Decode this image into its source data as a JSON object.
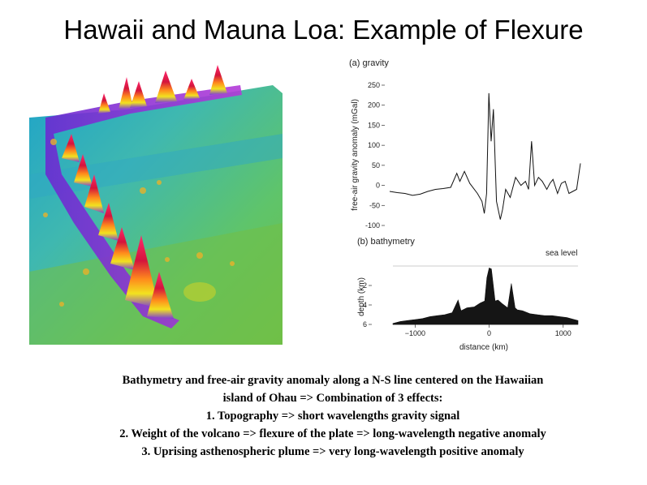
{
  "title": "Hawaii and Mauna Loa: Example of Flexure",
  "panel_a": {
    "label": "(a)  gravity",
    "ylabel": "free-air gravity anomaly (mGal)",
    "yticks": [
      "250",
      "200",
      "150",
      "100",
      "50",
      "0",
      "-50",
      "-100"
    ]
  },
  "panel_b": {
    "label": "(b)  bathymetry",
    "sea_level": "sea level",
    "ylabel": "depth (km)",
    "yticks": [
      "2",
      "4",
      "6"
    ],
    "xticks": [
      "−1000",
      "0",
      "1000"
    ],
    "xlabel": "distance (km)"
  },
  "chart_data": [
    {
      "type": "line",
      "title": "gravity",
      "ylabel": "free-air gravity anomaly (mGal)",
      "ylim": [
        -100,
        250
      ],
      "x": [
        -1300,
        -1200,
        -1100,
        -1000,
        -900,
        -800,
        -700,
        -600,
        -500,
        -420,
        -380,
        -320,
        -250,
        -150,
        -90,
        -60,
        -30,
        0,
        30,
        60,
        100,
        150,
        180,
        220,
        280,
        350,
        420,
        480,
        520,
        560,
        600,
        650,
        700,
        760,
        800,
        840,
        900,
        950,
        1000,
        1050,
        1100,
        1150,
        1200
      ],
      "values": [
        -15,
        -18,
        -20,
        -25,
        -22,
        -15,
        -10,
        -8,
        -5,
        30,
        10,
        35,
        5,
        -20,
        -40,
        -70,
        -20,
        230,
        110,
        190,
        -40,
        -85,
        -60,
        -10,
        -30,
        20,
        0,
        10,
        -10,
        110,
        0,
        20,
        10,
        -10,
        5,
        15,
        -20,
        5,
        10,
        -20,
        -15,
        -10,
        55
      ]
    },
    {
      "type": "area",
      "title": "bathymetry",
      "xlabel": "distance (km)",
      "ylabel": "depth (km)",
      "ylim": [
        6,
        0
      ],
      "x": [
        -1300,
        -1200,
        -1100,
        -1000,
        -900,
        -800,
        -700,
        -600,
        -500,
        -420,
        -380,
        -300,
        -200,
        -120,
        -60,
        -30,
        0,
        30,
        80,
        120,
        180,
        250,
        300,
        350,
        380,
        450,
        550,
        650,
        750,
        850,
        950,
        1050,
        1150,
        1200
      ],
      "values": [
        5.9,
        5.7,
        5.6,
        5.5,
        5.4,
        5.2,
        5.1,
        5.0,
        4.8,
        3.5,
        4.6,
        4.3,
        4.2,
        3.8,
        3.6,
        1.2,
        0.2,
        0.3,
        3.6,
        3.5,
        3.9,
        4.3,
        1.8,
        4.3,
        4.5,
        4.6,
        4.9,
        5.0,
        5.1,
        5.1,
        5.2,
        5.3,
        5.5,
        5.6
      ]
    }
  ],
  "caption": {
    "line1": "Bathymetry and free-air gravity anomaly along a N-S line centered on the Hawaiian",
    "line2": "island of Ohau => Combination of 3 effects:",
    "line3": "1.  Topography => short wavelengths gravity signal",
    "line4": "2.  Weight of the volcano => flexure of the plate => long-wavelength negative anomaly",
    "line5": "3.  Uprising asthenospheric plume => very long-wavelength positive anomaly"
  }
}
